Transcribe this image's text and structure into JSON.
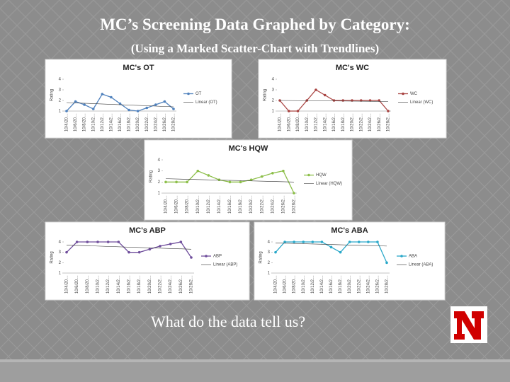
{
  "title": "MC’s Screening Data Graphed by Category:",
  "subtitle": "(Using a Marked Scatter-Chart with Trendlines)",
  "caption": "What do the data tell us?",
  "chart_data": [
    {
      "type": "line",
      "title": "MC's OT",
      "y_label": "Rating",
      "categories": [
        "10/4/20…",
        "10/6/20…",
        "10/8/20…",
        "10/10/2…",
        "10/12/2…",
        "10/14/2…",
        "10/16/2…",
        "10/18/2…",
        "10/20/2…",
        "10/22/2…",
        "10/24/2…",
        "10/26/2…",
        "10/28/2…"
      ],
      "series": [
        {
          "name": "OT",
          "color": "#4f81bd",
          "values": [
            1,
            1.9,
            1.6,
            1.2,
            2.6,
            2.3,
            1.7,
            1.1,
            1,
            1.3,
            1.6,
            1.9,
            1.2
          ]
        }
      ],
      "trend": {
        "name": "Linear (OT)",
        "start": 1.8,
        "end": 1.4
      },
      "ylim": [
        1,
        4
      ],
      "yticks": [
        1,
        2,
        3,
        4
      ]
    },
    {
      "type": "line",
      "title": "MC's WC",
      "y_label": "Rating",
      "categories": [
        "10/4/20…",
        "10/6/20…",
        "10/8/20…",
        "10/10/2…",
        "10/12/2…",
        "10/14/2…",
        "10/16/2…",
        "10/18/2…",
        "10/20/2…",
        "10/22/2…",
        "10/24/2…",
        "10/26/2…",
        "10/28/2…"
      ],
      "series": [
        {
          "name": "WC",
          "color": "#a94442",
          "values": [
            2,
            1,
            1,
            2,
            3,
            2.5,
            2,
            2,
            2,
            2,
            2,
            2,
            1
          ]
        }
      ],
      "trend": {
        "name": "Linear (WC)",
        "start": 2,
        "end": 1.9
      },
      "ylim": [
        1,
        4
      ],
      "yticks": [
        1,
        2,
        3,
        4
      ]
    },
    {
      "type": "line",
      "title": "MC's HQW",
      "y_label": "Rating",
      "categories": [
        "10/4/20…",
        "10/6/20…",
        "10/8/20…",
        "10/10/2…",
        "10/12/2…",
        "10/14/2…",
        "10/16/2…",
        "10/18/2…",
        "10/20/2…",
        "10/22/2…",
        "10/24/2…",
        "10/26/2…",
        "10/28/2…"
      ],
      "series": [
        {
          "name": "HQW",
          "color": "#8dbf4a",
          "values": [
            2,
            2,
            2,
            3,
            2.6,
            2.2,
            2,
            2,
            2.2,
            2.5,
            2.8,
            3,
            1
          ]
        }
      ],
      "trend": {
        "name": "Linear (HQW)",
        "start": 2.3,
        "end": 2.0
      },
      "ylim": [
        1,
        4
      ],
      "yticks": [
        1,
        2,
        3,
        4
      ]
    },
    {
      "type": "line",
      "title": "MC's ABP",
      "y_label": "Rating",
      "categories": [
        "10/4/20…",
        "10/6/20…",
        "10/8/20…",
        "10/10/2…",
        "10/12/2…",
        "10/14/2…",
        "10/16/2…",
        "10/18/2…",
        "10/20/2…",
        "10/22/2…",
        "10/24/2…",
        "10/26/2…",
        "10/28/2…"
      ],
      "series": [
        {
          "name": "ABP",
          "color": "#6f4e9c",
          "values": [
            3,
            4,
            4,
            4,
            4,
            4,
            3,
            3,
            3.3,
            3.6,
            3.8,
            4,
            2.5
          ]
        }
      ],
      "trend": {
        "name": "Linear (ABP)",
        "start": 3.7,
        "end": 3.3
      },
      "ylim": [
        1,
        4
      ],
      "yticks": [
        1,
        2,
        3,
        4
      ]
    },
    {
      "type": "line",
      "title": "MC's ABA",
      "y_label": "Rating",
      "categories": [
        "10/4/20…",
        "10/6/20…",
        "10/8/20…",
        "10/10/2…",
        "10/12/2…",
        "10/14/2…",
        "10/16/2…",
        "10/18/2…",
        "10/20/2…",
        "10/22/2…",
        "10/24/2…",
        "10/26/2…",
        "10/28/2…"
      ],
      "series": [
        {
          "name": "ABA",
          "color": "#2aa8c9",
          "values": [
            3,
            4,
            4,
            4,
            4,
            4,
            3.5,
            3,
            4,
            4,
            4,
            4,
            2
          ]
        }
      ],
      "trend": {
        "name": "Linear (ABA)",
        "start": 3.9,
        "end": 3.6
      },
      "ylim": [
        1,
        4
      ],
      "yticks": [
        1,
        2,
        3,
        4
      ]
    }
  ]
}
